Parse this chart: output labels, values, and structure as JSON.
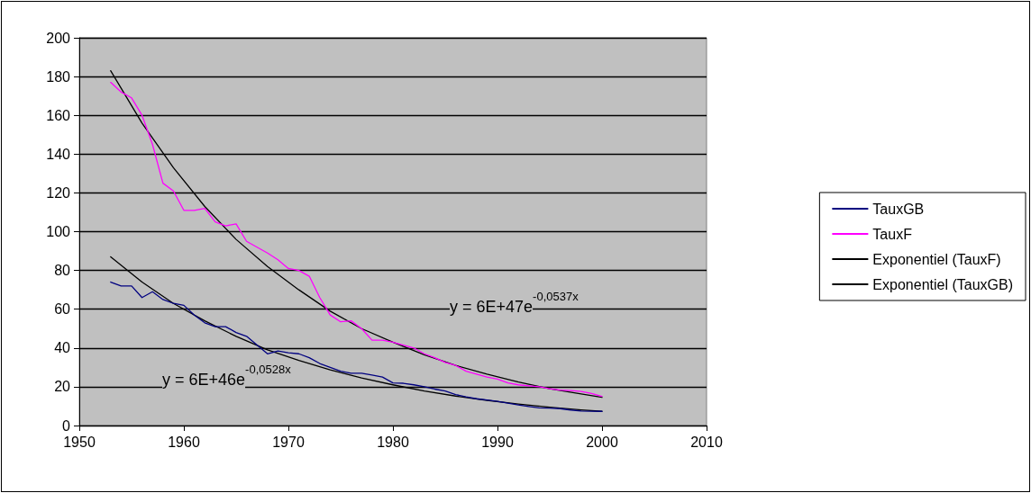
{
  "chart_data": {
    "type": "line",
    "x": [
      1953,
      1954,
      1955,
      1956,
      1957,
      1958,
      1959,
      1960,
      1961,
      1962,
      1963,
      1964,
      1965,
      1966,
      1967,
      1968,
      1969,
      1970,
      1971,
      1972,
      1973,
      1974,
      1975,
      1976,
      1977,
      1978,
      1979,
      1980,
      1981,
      1982,
      1983,
      1984,
      1985,
      1986,
      1987,
      1988,
      1989,
      1990,
      1991,
      1992,
      1993,
      1994,
      1995,
      1996,
      1997,
      1998,
      1999,
      2000
    ],
    "series": [
      {
        "name": "TauxGB",
        "color": "#000080",
        "values": [
          74,
          72,
          72,
          66,
          69,
          65,
          63,
          62,
          57,
          53,
          51,
          51,
          48,
          46,
          41.5,
          37,
          38.5,
          37.5,
          37,
          35,
          32,
          30,
          28,
          27,
          27,
          26,
          25,
          22,
          21.8,
          21,
          20,
          18.8,
          17.8,
          16,
          14.8,
          13.8,
          13.2,
          12.5,
          11.5,
          10.6,
          9.8,
          9.1,
          9,
          8.7,
          8,
          7.5,
          7.4,
          7.3
        ]
      },
      {
        "name": "TauxF",
        "color": "#ff00ff",
        "values": [
          177,
          172,
          169,
          160,
          145,
          125,
          121,
          111,
          111,
          112,
          105,
          103,
          104,
          95,
          92,
          89,
          85.5,
          81,
          80,
          77,
          66,
          57,
          53.5,
          54,
          50,
          44,
          44,
          43,
          41.5,
          40,
          37,
          35,
          32.5,
          31,
          28,
          26.5,
          25,
          24,
          22,
          21,
          20.5,
          20,
          19,
          18.3,
          18,
          17.6,
          16.5,
          15
        ]
      },
      {
        "name": "Exponentiel (TauxF)",
        "color": "#000000",
        "x": [
          1953,
          1956,
          1959,
          1962,
          1965,
          1968,
          1971,
          1974,
          1977,
          1980,
          1983,
          1986,
          1989,
          1992,
          1995,
          1998,
          2000
        ],
        "values": [
          183,
          156,
          133,
          113,
          96,
          82,
          70,
          59,
          50,
          43,
          36.5,
          31,
          26.5,
          22.5,
          19,
          16.3,
          14.6
        ]
      },
      {
        "name": "Exponentiel (TauxGB)",
        "color": "#000000",
        "x": [
          1953,
          1956,
          1959,
          1962,
          1965,
          1968,
          1971,
          1974,
          1977,
          1980,
          1983,
          1986,
          1989,
          1992,
          1995,
          1998,
          2000
        ],
        "values": [
          87,
          74,
          63,
          54,
          46,
          39,
          33.6,
          28.7,
          24.5,
          21,
          17.8,
          15.2,
          13,
          11.1,
          9.5,
          8.1,
          7.3
        ]
      }
    ],
    "xlim": [
      1950,
      2010
    ],
    "xticks": [
      1950,
      1960,
      1970,
      1980,
      1990,
      2000,
      2010
    ],
    "ylim": [
      0,
      200
    ],
    "yticks": [
      0,
      20,
      40,
      60,
      80,
      100,
      120,
      140,
      160,
      180,
      200
    ],
    "grid": "y",
    "legend": "right",
    "marker": "none",
    "line_style": "solid",
    "annotations": [
      "y = 6E+47e$^{-0,0537x}$",
      "y = 6E+46e$^{-0,0528x}$"
    ]
  }
}
